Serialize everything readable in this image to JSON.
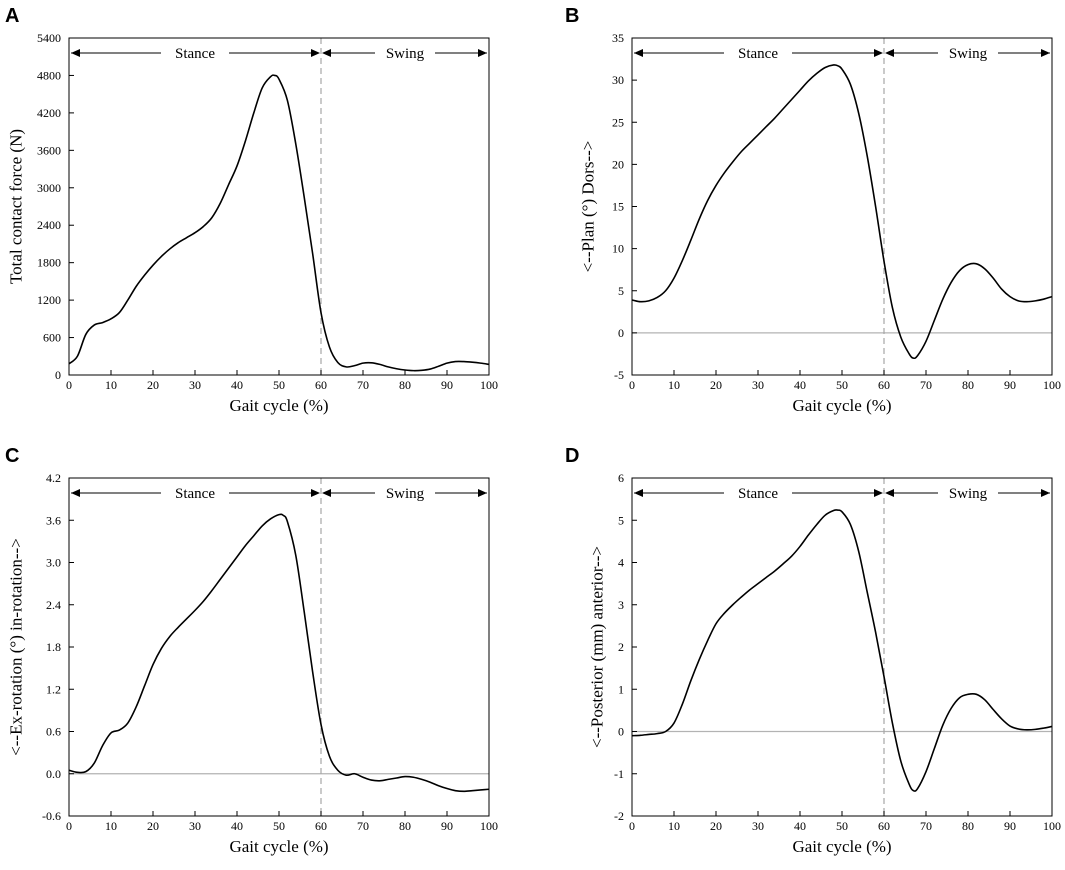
{
  "chart_data": [
    {
      "panel": "A",
      "type": "line",
      "xlabel": "Gait cycle (%)",
      "ylabel": "Total contact force (N)",
      "xlim": [
        0,
        100
      ],
      "ylim": [
        0,
        5400
      ],
      "xticks": [
        0,
        10,
        20,
        30,
        40,
        50,
        60,
        70,
        80,
        90,
        100
      ],
      "yticks": [
        0,
        600,
        1200,
        1800,
        2400,
        3000,
        3600,
        4200,
        4800,
        5400
      ],
      "phase_divider": 60,
      "phases": [
        "Stance",
        "Swing"
      ],
      "zero_line": false,
      "series": [
        {
          "name": "Total contact force",
          "x": [
            0,
            2,
            4,
            6,
            8,
            10,
            12,
            14,
            16,
            18,
            20,
            22,
            24,
            26,
            28,
            30,
            32,
            34,
            36,
            38,
            40,
            42,
            44,
            46,
            48,
            49,
            50,
            52,
            54,
            56,
            58,
            60,
            62,
            64,
            66,
            68,
            70,
            72,
            74,
            76,
            78,
            80,
            82,
            84,
            86,
            88,
            90,
            92,
            94,
            96,
            98,
            100
          ],
          "y": [
            180,
            300,
            650,
            800,
            840,
            900,
            1000,
            1200,
            1420,
            1600,
            1760,
            1900,
            2020,
            2120,
            2200,
            2280,
            2380,
            2520,
            2750,
            3050,
            3350,
            3750,
            4200,
            4600,
            4780,
            4800,
            4740,
            4400,
            3700,
            2850,
            1950,
            1000,
            450,
            200,
            130,
            150,
            190,
            195,
            170,
            130,
            100,
            80,
            70,
            75,
            95,
            140,
            190,
            215,
            215,
            205,
            190,
            170
          ]
        }
      ]
    },
    {
      "panel": "B",
      "type": "line",
      "xlabel": "Gait cycle (%)",
      "ylabel": "<--Plan (°) Dors-->",
      "xlim": [
        0,
        100
      ],
      "ylim": [
        -5,
        35
      ],
      "xticks": [
        0,
        10,
        20,
        30,
        40,
        50,
        60,
        70,
        80,
        90,
        100
      ],
      "yticks": [
        -5,
        0,
        5,
        10,
        15,
        20,
        25,
        30,
        35
      ],
      "phase_divider": 60,
      "phases": [
        "Stance",
        "Swing"
      ],
      "zero_line": true,
      "series": [
        {
          "name": "Plantar/Dorsiflexion",
          "x": [
            0,
            2,
            4,
            6,
            8,
            10,
            12,
            14,
            16,
            18,
            20,
            22,
            24,
            26,
            28,
            30,
            32,
            34,
            36,
            38,
            40,
            42,
            44,
            46,
            48,
            49,
            50,
            52,
            54,
            56,
            58,
            60,
            62,
            64,
            66,
            67,
            68,
            70,
            72,
            74,
            76,
            78,
            80,
            82,
            84,
            86,
            88,
            90,
            92,
            94,
            96,
            98,
            100
          ],
          "y": [
            3.9,
            3.7,
            3.8,
            4.2,
            5.0,
            6.5,
            8.6,
            11.0,
            13.5,
            15.7,
            17.5,
            19.0,
            20.3,
            21.5,
            22.5,
            23.5,
            24.5,
            25.5,
            26.6,
            27.7,
            28.8,
            29.9,
            30.8,
            31.5,
            31.8,
            31.7,
            31.3,
            29.5,
            26.0,
            21.0,
            15.0,
            8.5,
            3.0,
            -0.5,
            -2.5,
            -3.0,
            -2.7,
            -1.0,
            1.5,
            4.0,
            6.0,
            7.4,
            8.1,
            8.2,
            7.6,
            6.5,
            5.2,
            4.3,
            3.8,
            3.7,
            3.8,
            4.0,
            4.3
          ]
        }
      ]
    },
    {
      "panel": "C",
      "type": "line",
      "xlabel": "Gait cycle (%)",
      "ylabel": "<--Ex-rotation (°) in-rotation-->",
      "xlim": [
        0,
        100
      ],
      "ylim": [
        -0.6,
        4.2
      ],
      "xticks": [
        0,
        10,
        20,
        30,
        40,
        50,
        60,
        70,
        80,
        90,
        100
      ],
      "yticks": [
        -0.6,
        0.0,
        0.6,
        1.2,
        1.8,
        2.4,
        3.0,
        3.6,
        4.2
      ],
      "phase_divider": 60,
      "phases": [
        "Stance",
        "Swing"
      ],
      "zero_line": true,
      "series": [
        {
          "name": "Ex/In-rotation",
          "x": [
            0,
            2,
            4,
            6,
            8,
            10,
            12,
            14,
            16,
            18,
            20,
            22,
            24,
            26,
            28,
            30,
            32,
            34,
            36,
            38,
            40,
            42,
            44,
            46,
            48,
            50,
            51,
            52,
            54,
            56,
            58,
            60,
            62,
            64,
            66,
            68,
            70,
            72,
            74,
            76,
            78,
            80,
            82,
            84,
            86,
            88,
            90,
            92,
            94,
            96,
            98,
            100
          ],
          "y": [
            0.05,
            0.02,
            0.03,
            0.15,
            0.4,
            0.58,
            0.62,
            0.72,
            0.95,
            1.25,
            1.55,
            1.78,
            1.95,
            2.08,
            2.2,
            2.32,
            2.45,
            2.6,
            2.76,
            2.92,
            3.08,
            3.24,
            3.38,
            3.52,
            3.62,
            3.68,
            3.67,
            3.58,
            3.1,
            2.3,
            1.45,
            0.7,
            0.25,
            0.05,
            -0.02,
            0.0,
            -0.05,
            -0.09,
            -0.1,
            -0.08,
            -0.06,
            -0.04,
            -0.05,
            -0.08,
            -0.12,
            -0.17,
            -0.21,
            -0.24,
            -0.25,
            -0.24,
            -0.23,
            -0.22
          ]
        }
      ]
    },
    {
      "panel": "D",
      "type": "line",
      "xlabel": "Gait cycle (%)",
      "ylabel": "<--Posterior (mm) anterior-->",
      "xlim": [
        0,
        100
      ],
      "ylim": [
        -2,
        6
      ],
      "xticks": [
        0,
        10,
        20,
        30,
        40,
        50,
        60,
        70,
        80,
        90,
        100
      ],
      "yticks": [
        -2,
        -1,
        0,
        1,
        2,
        3,
        4,
        5,
        6
      ],
      "phase_divider": 60,
      "phases": [
        "Stance",
        "Swing"
      ],
      "zero_line": true,
      "series": [
        {
          "name": "Posterior/anterior",
          "x": [
            0,
            2,
            4,
            6,
            8,
            10,
            12,
            14,
            16,
            18,
            20,
            22,
            24,
            26,
            28,
            30,
            32,
            34,
            36,
            38,
            40,
            42,
            44,
            46,
            48,
            49,
            50,
            52,
            54,
            56,
            58,
            60,
            62,
            64,
            66,
            67,
            68,
            70,
            72,
            74,
            76,
            78,
            80,
            82,
            84,
            86,
            88,
            90,
            92,
            94,
            96,
            98,
            100
          ],
          "y": [
            -0.1,
            -0.09,
            -0.07,
            -0.05,
            0.0,
            0.2,
            0.65,
            1.2,
            1.7,
            2.15,
            2.55,
            2.8,
            3.0,
            3.18,
            3.35,
            3.5,
            3.65,
            3.8,
            3.97,
            4.15,
            4.38,
            4.65,
            4.9,
            5.12,
            5.23,
            5.24,
            5.2,
            4.9,
            4.25,
            3.3,
            2.35,
            1.3,
            0.2,
            -0.7,
            -1.25,
            -1.4,
            -1.35,
            -0.95,
            -0.4,
            0.15,
            0.55,
            0.8,
            0.88,
            0.88,
            0.75,
            0.52,
            0.3,
            0.13,
            0.06,
            0.04,
            0.05,
            0.08,
            0.12
          ]
        }
      ]
    }
  ]
}
